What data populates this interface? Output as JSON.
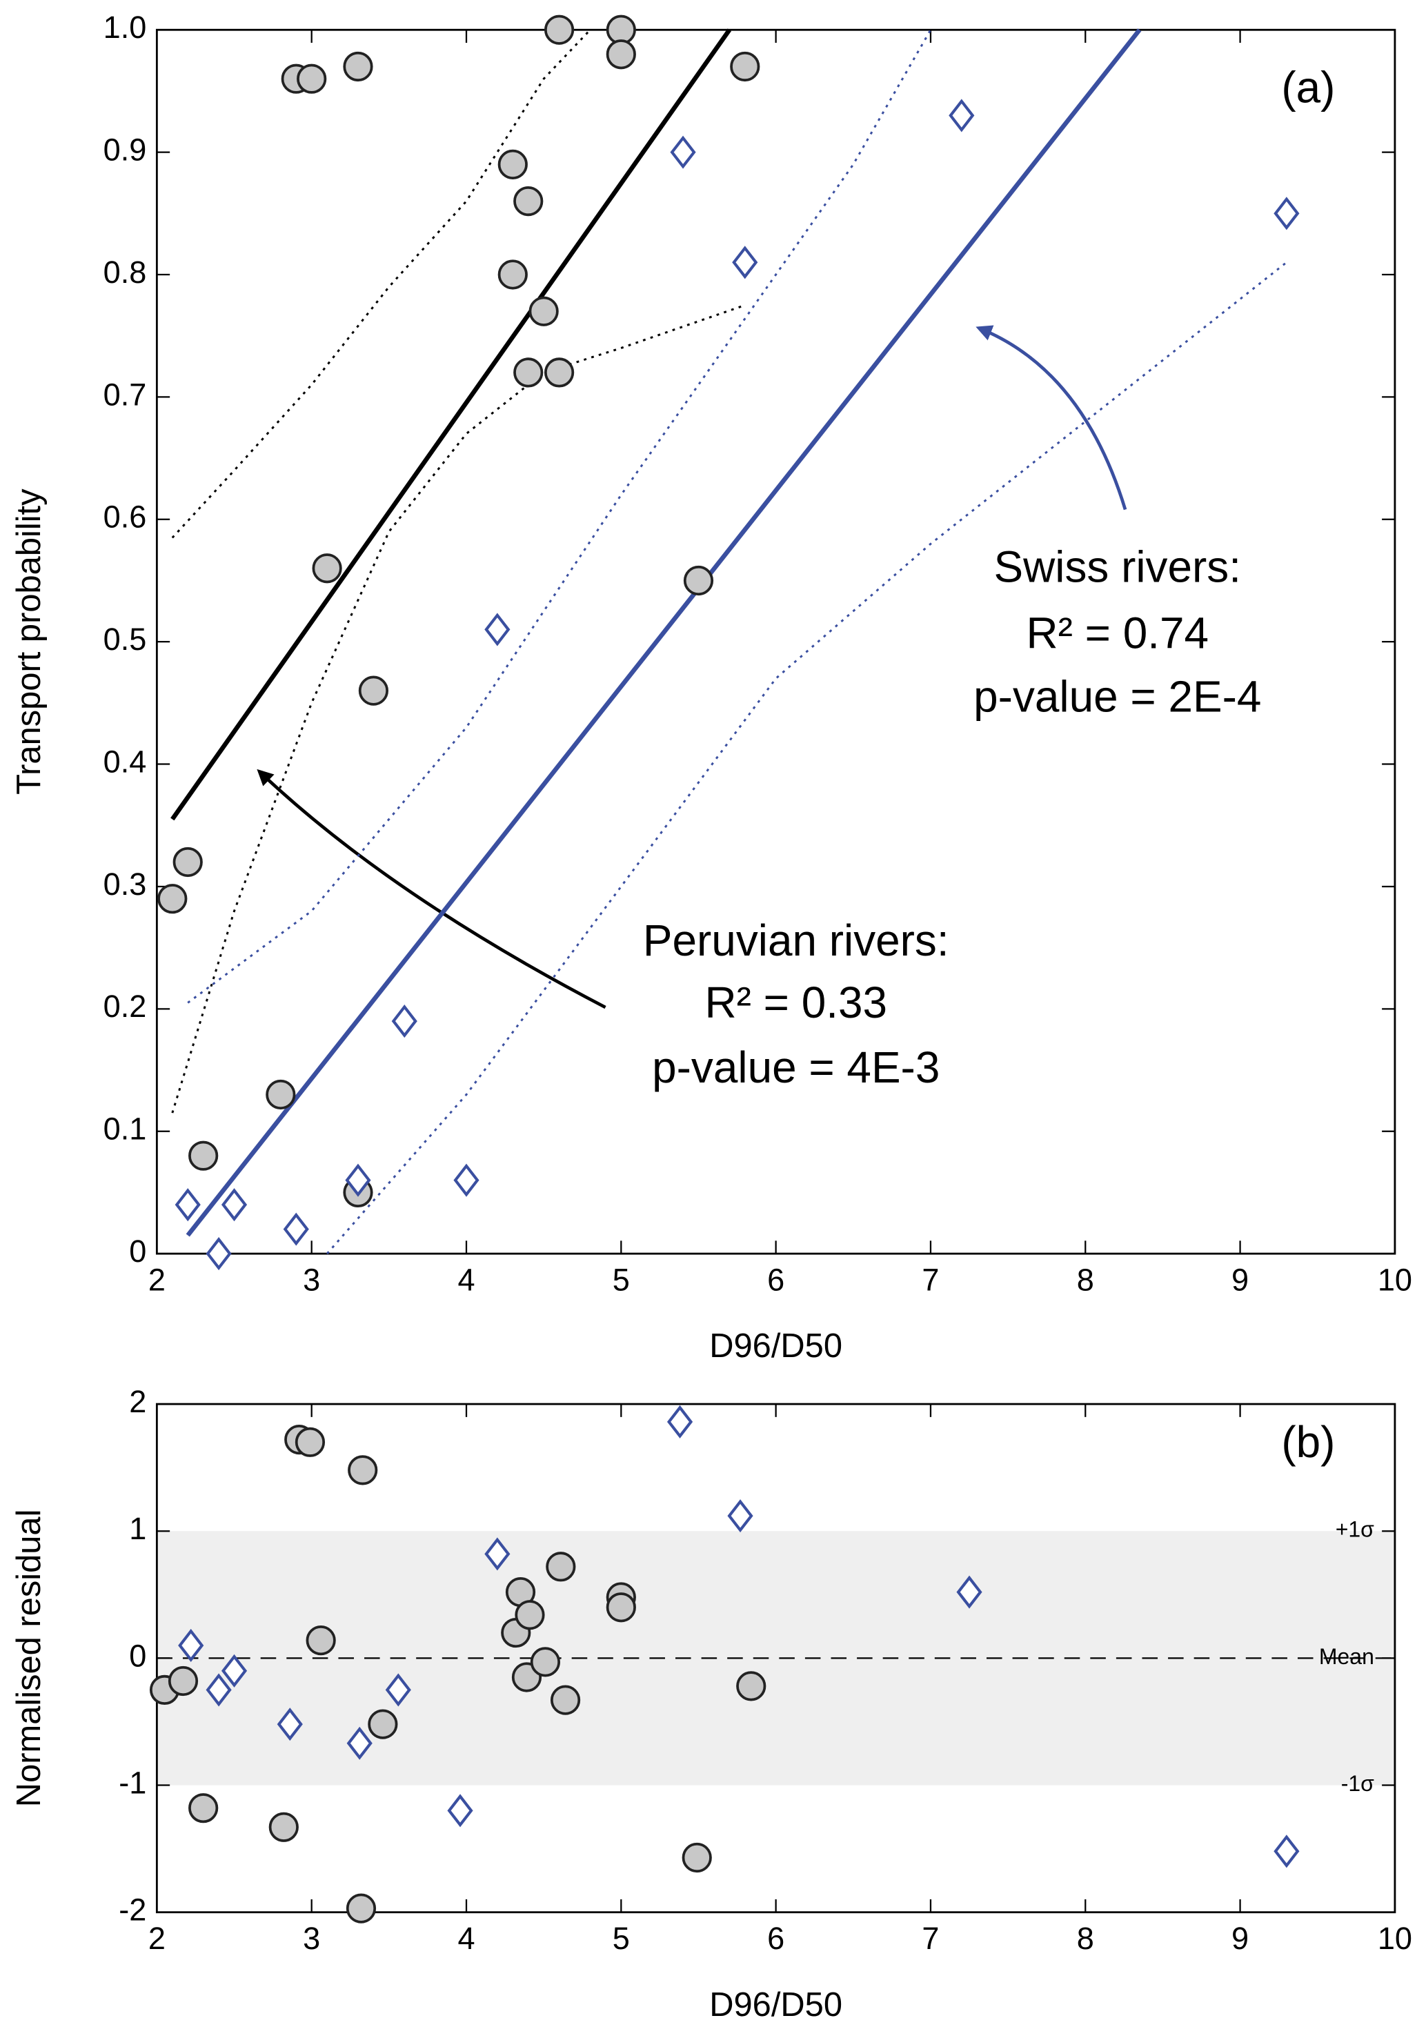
{
  "chart_data": [
    {
      "type": "scatter",
      "xlabel": "D96/D50",
      "ylabel": "Transport probability",
      "xlim": [
        2,
        10
      ],
      "xticks": [
        2,
        3,
        4,
        5,
        6,
        7,
        8,
        9,
        10
      ],
      "ylim": [
        0,
        1
      ],
      "yticks": [
        0,
        0.1,
        0.2,
        0.3,
        0.4,
        0.5,
        0.6,
        0.7,
        0.8,
        0.9,
        {
          "value": 1,
          "label": "1.0"
        }
      ],
      "annotations": [
        {
          "text": "(a)"
        },
        {
          "text": "Swiss rivers:"
        },
        {
          "text": "R² = 0.74"
        },
        {
          "text": "p-value = 2E-4"
        },
        {
          "text": "Peruvian rivers:"
        },
        {
          "text": "R² = 0.33"
        },
        {
          "text": "p-value = 4E-3"
        }
      ],
      "series": [
        {
          "marker": "none",
          "line": "solid",
          "color": "#000000",
          "x": [
            2.1,
            5.7
          ],
          "values": [
            0.355,
            1.0
          ]
        },
        {
          "marker": "none",
          "line": "dotted",
          "color": "#000000",
          "x": [
            2.1,
            2.5,
            3,
            3.5,
            4,
            4.5,
            4.8
          ],
          "values": [
            0.585,
            0.64,
            0.71,
            0.79,
            0.86,
            0.96,
            1.0
          ]
        },
        {
          "marker": "none",
          "line": "dotted",
          "color": "#000000",
          "x": [
            2.1,
            2.5,
            3,
            3.5,
            4,
            4.5,
            5,
            5.8
          ],
          "values": [
            0.115,
            0.28,
            0.45,
            0.59,
            0.67,
            0.72,
            0.74,
            0.775
          ]
        },
        {
          "marker": "none",
          "line": "solid",
          "color": "#3a4fa0",
          "x": [
            2.2,
            8.35
          ],
          "values": [
            0.015,
            1.0
          ]
        },
        {
          "marker": "none",
          "line": "dotted",
          "color": "#3a4fa0",
          "x": [
            2.2,
            3,
            4,
            5,
            6,
            6.5,
            7
          ],
          "values": [
            0.205,
            0.28,
            0.43,
            0.62,
            0.8,
            0.89,
            1.0
          ]
        },
        {
          "marker": "none",
          "line": "dotted",
          "color": "#3a4fa0",
          "x": [
            3.1,
            4,
            5,
            6,
            7,
            8,
            9.3
          ],
          "values": [
            0.0,
            0.13,
            0.3,
            0.47,
            0.58,
            0.68,
            0.81
          ]
        },
        {
          "marker": "circle",
          "line": "none",
          "color": "#c8c8c8",
          "x": [
            2.1,
            2.2,
            2.3,
            2.8,
            2.9,
            3.0,
            3.1,
            3.3,
            3.3,
            3.4,
            4.3,
            4.3,
            4.4,
            4.4,
            4.5,
            4.6,
            4.6,
            5.0,
            5.0,
            5.5,
            5.8
          ],
          "values": [
            0.29,
            0.32,
            0.08,
            0.13,
            0.96,
            0.96,
            0.56,
            0.97,
            0.05,
            0.46,
            0.89,
            0.8,
            0.86,
            0.72,
            0.77,
            0.72,
            1.0,
            1.0,
            0.98,
            0.55,
            0.97
          ]
        },
        {
          "marker": "diamond",
          "line": "none",
          "color": "#3a4fa0",
          "x": [
            2.2,
            2.4,
            2.5,
            2.9,
            3.3,
            3.6,
            4.0,
            4.2,
            5.4,
            5.8,
            7.2,
            9.3
          ],
          "values": [
            0.04,
            0.0,
            0.04,
            0.02,
            0.06,
            0.19,
            0.06,
            0.51,
            0.9,
            0.81,
            0.93,
            0.85
          ]
        }
      ]
    },
    {
      "type": "scatter",
      "xlabel": "D96/D50",
      "ylabel": "Normalised residual",
      "xlim": [
        2,
        10
      ],
      "xticks": [
        2,
        3,
        4,
        5,
        6,
        7,
        8,
        9,
        10
      ],
      "ylim": [
        -2,
        2
      ],
      "yticks": [
        -2,
        -1,
        0,
        1,
        2
      ],
      "annotations": [
        {
          "text": "(b)"
        }
      ],
      "reference_lines": [
        {
          "value": 1,
          "label": "+1σ"
        },
        {
          "value": 0,
          "label": "Mean"
        },
        {
          "value": -1,
          "label": "-1σ"
        }
      ],
      "shaded": true,
      "series": [
        {
          "marker": "circle",
          "line": "none",
          "color": "#c8c8c8",
          "x": [
            2.05,
            2.17,
            2.3,
            2.82,
            2.92,
            2.99,
            3.06,
            3.33,
            3.32,
            3.46,
            4.32,
            4.35,
            4.39,
            4.41,
            4.51,
            4.61,
            4.64,
            5.0,
            5.0,
            5.49,
            5.84
          ],
          "values": [
            -0.25,
            -0.18,
            -1.18,
            -1.33,
            1.72,
            1.7,
            0.14,
            1.48,
            -1.97,
            -0.52,
            0.2,
            0.52,
            -0.15,
            0.34,
            -0.03,
            0.72,
            -0.33,
            0.48,
            0.4,
            -1.57,
            -0.22
          ]
        },
        {
          "marker": "diamond",
          "line": "none",
          "color": "#3a4fa0",
          "x": [
            2.22,
            2.4,
            2.5,
            2.86,
            3.31,
            3.56,
            3.96,
            4.2,
            5.38,
            5.77,
            7.25,
            9.3
          ],
          "values": [
            0.1,
            -0.25,
            -0.1,
            -0.52,
            -0.67,
            -0.25,
            -1.2,
            0.82,
            1.86,
            1.12,
            0.52,
            -1.52
          ]
        }
      ]
    }
  ]
}
